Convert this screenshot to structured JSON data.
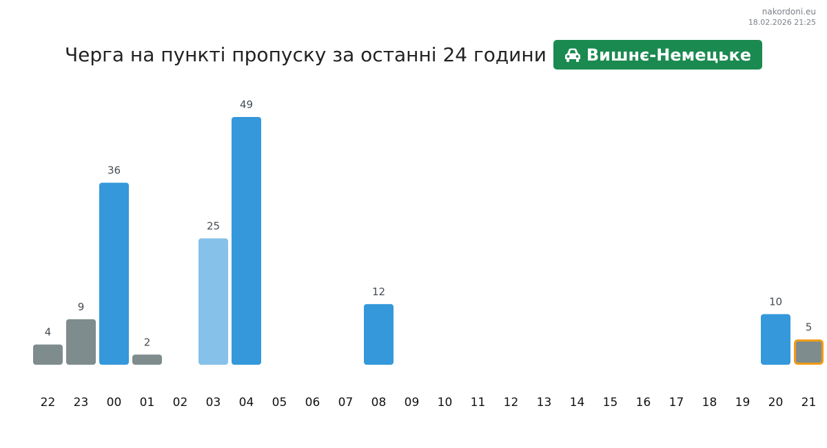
{
  "brand": {
    "site": "nakordoni.eu",
    "timestamp": "18.02.2026 21:25"
  },
  "header": {
    "title": "Черга на пункті пропуску за останні 24 години",
    "badge_label": "Вишнє-Немецьке",
    "badge_icon": "car-icon",
    "badge_color": "#1b8a50"
  },
  "colors": {
    "grey": "#7f8c8d",
    "blue": "#3498db",
    "light_blue": "#85c1e9",
    "highlight_border": "#f39c12"
  },
  "chart_data": {
    "type": "bar",
    "title": "Черга на пункті пропуску за останні 24 години",
    "xlabel": "",
    "ylabel": "",
    "grid": false,
    "legend": "none",
    "categories": [
      "22",
      "23",
      "00",
      "01",
      "02",
      "03",
      "04",
      "05",
      "06",
      "07",
      "08",
      "09",
      "10",
      "11",
      "12",
      "13",
      "14",
      "15",
      "16",
      "17",
      "18",
      "19",
      "20",
      "21"
    ],
    "values": [
      4,
      9,
      36,
      2,
      null,
      25,
      49,
      null,
      null,
      null,
      12,
      null,
      null,
      null,
      null,
      null,
      null,
      null,
      null,
      null,
      null,
      null,
      10,
      5
    ],
    "bar_colors": [
      "grey",
      "grey",
      "blue",
      "grey",
      null,
      "light_blue",
      "blue",
      null,
      null,
      null,
      "blue",
      null,
      null,
      null,
      null,
      null,
      null,
      null,
      null,
      null,
      null,
      null,
      "blue",
      "grey"
    ],
    "highlighted_category": "21",
    "ylim": [
      0,
      49
    ]
  }
}
